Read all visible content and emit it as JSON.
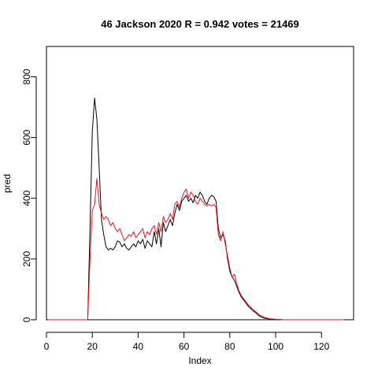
{
  "chart_data": {
    "type": "line",
    "title": "46 Jackson 2020 R = 0.942 votes = 21469",
    "xlabel": "Index",
    "ylabel": "pred",
    "xlim": [
      0,
      134
    ],
    "ylim": [
      0,
      900
    ],
    "x_ticks": [
      0,
      20,
      40,
      60,
      80,
      100,
      120
    ],
    "y_ticks": [
      0,
      200,
      400,
      600,
      800
    ],
    "grid": false,
    "x": [
      1,
      2,
      3,
      4,
      5,
      6,
      7,
      8,
      9,
      10,
      11,
      12,
      13,
      14,
      15,
      16,
      17,
      18,
      19,
      20,
      21,
      22,
      23,
      24,
      25,
      26,
      27,
      28,
      29,
      30,
      31,
      32,
      33,
      34,
      35,
      36,
      37,
      38,
      39,
      40,
      41,
      42,
      43,
      44,
      45,
      46,
      47,
      48,
      49,
      50,
      51,
      52,
      53,
      54,
      55,
      56,
      57,
      58,
      59,
      60,
      61,
      62,
      63,
      64,
      65,
      66,
      67,
      68,
      69,
      70,
      71,
      72,
      73,
      74,
      75,
      76,
      77,
      78,
      79,
      80,
      81,
      82,
      83,
      84,
      85,
      86,
      87,
      88,
      89,
      90,
      91,
      92,
      93,
      94,
      95,
      96,
      97,
      98,
      99,
      100,
      101,
      102,
      103,
      104,
      105,
      106,
      107,
      108,
      109,
      110,
      111,
      112,
      113,
      114,
      115,
      116,
      117,
      118,
      119,
      120,
      121,
      122,
      123,
      124,
      125,
      126,
      127,
      128,
      129,
      130
    ],
    "series": [
      {
        "color": "#000000",
        "values": [
          0,
          0,
          0,
          0,
          0,
          0,
          0,
          0,
          0,
          0,
          0,
          0,
          0,
          0,
          0,
          0,
          0,
          0,
          300,
          620,
          730,
          660,
          500,
          330,
          280,
          240,
          230,
          235,
          230,
          240,
          260,
          255,
          240,
          250,
          235,
          230,
          240,
          250,
          240,
          260,
          250,
          265,
          235,
          260,
          250,
          240,
          290,
          250,
          300,
          240,
          320,
          290,
          310,
          330,
          310,
          350,
          380,
          360,
          390,
          400,
          410,
          390,
          400,
          385,
          410,
          400,
          420,
          410,
          390,
          380,
          400,
          410,
          405,
          390,
          300,
          270,
          280,
          260,
          200,
          160,
          140,
          130,
          110,
          90,
          75,
          65,
          55,
          45,
          38,
          30,
          25,
          18,
          12,
          8,
          5,
          4,
          3,
          2,
          2,
          1,
          1,
          1,
          0,
          0,
          0,
          0,
          0,
          0,
          0,
          0,
          0,
          0,
          0,
          0,
          0,
          0,
          0,
          0,
          0,
          0,
          0,
          0,
          0,
          0,
          0,
          0,
          0,
          0,
          0,
          0
        ]
      },
      {
        "color": "#e8141e",
        "values": [
          0,
          0,
          0,
          0,
          0,
          0,
          0,
          0,
          0,
          0,
          0,
          0,
          0,
          0,
          0,
          0,
          0,
          0,
          200,
          360,
          380,
          465,
          380,
          350,
          330,
          340,
          330,
          310,
          320,
          300,
          290,
          300,
          280,
          260,
          270,
          280,
          275,
          290,
          270,
          280,
          290,
          300,
          270,
          290,
          280,
          300,
          310,
          280,
          320,
          290,
          340,
          320,
          330,
          350,
          330,
          380,
          390,
          370,
          400,
          420,
          430,
          400,
          420,
          410,
          390,
          380,
          400,
          390,
          380,
          375,
          380,
          375,
          380,
          370,
          280,
          260,
          290,
          250,
          210,
          170,
          140,
          150,
          120,
          95,
          80,
          70,
          60,
          50,
          42,
          35,
          28,
          22,
          15,
          12,
          8,
          6,
          4,
          3,
          2,
          2,
          1,
          1,
          0,
          0,
          0,
          0,
          0,
          0,
          0,
          0,
          0,
          0,
          0,
          0,
          0,
          0,
          0,
          0,
          0,
          0,
          0,
          0,
          0,
          0,
          0,
          0,
          0,
          0,
          0,
          0
        ]
      }
    ]
  }
}
